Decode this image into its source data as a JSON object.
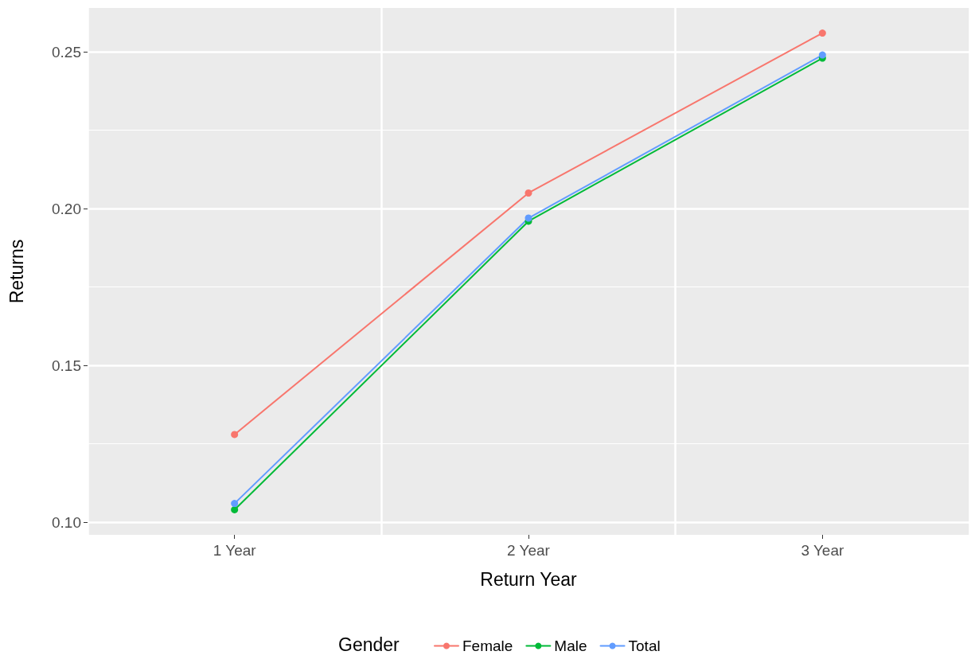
{
  "chart_data": {
    "type": "line",
    "xlabel": "Return Year",
    "ylabel": "Returns",
    "legend_title": "Gender",
    "categories": [
      "1 Year",
      "2 Year",
      "3 Year"
    ],
    "series": [
      {
        "name": "Female",
        "color": "#f8766d",
        "values": [
          0.128,
          0.205,
          0.256
        ]
      },
      {
        "name": "Male",
        "color": "#00ba38",
        "values": [
          0.104,
          0.196,
          0.248
        ]
      },
      {
        "name": "Total",
        "color": "#619cff",
        "values": [
          0.106,
          0.197,
          0.249
        ]
      }
    ],
    "ylim": [
      0.096,
      0.264
    ],
    "yticks": [
      {
        "value": 0.1,
        "label": "0.10"
      },
      {
        "value": 0.125,
        "label": null
      },
      {
        "value": 0.15,
        "label": "0.15"
      },
      {
        "value": 0.175,
        "label": null
      },
      {
        "value": 0.2,
        "label": "0.20"
      },
      {
        "value": 0.225,
        "label": null
      },
      {
        "value": 0.25,
        "label": "0.25"
      }
    ],
    "grid": true,
    "legend": "bottom",
    "marker": "circle",
    "line_style": "solid"
  }
}
